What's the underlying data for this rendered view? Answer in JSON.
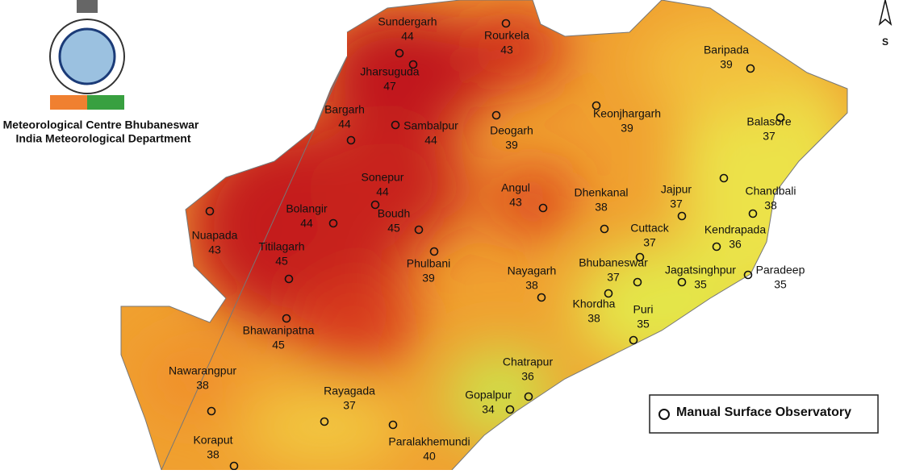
{
  "header": {
    "line1": "Meteorological Centre Bhubaneswar",
    "line2": "India Meteorological Department"
  },
  "compass": "S",
  "legend": "Manual Surface Observatory",
  "stations": [
    {
      "name": "Sundergarh",
      "temp": 44
    },
    {
      "name": "Rourkela",
      "temp": 43
    },
    {
      "name": "Jharsuguda",
      "temp": 47
    },
    {
      "name": "Bargarh",
      "temp": 44
    },
    {
      "name": "Sambalpur",
      "temp": 44
    },
    {
      "name": "Deogarh",
      "temp": 39
    },
    {
      "name": "Keonjhargarh",
      "temp": 39
    },
    {
      "name": "Baripada",
      "temp": 39
    },
    {
      "name": "Balasore",
      "temp": 37
    },
    {
      "name": "Sonepur",
      "temp": 44
    },
    {
      "name": "Angul",
      "temp": 43
    },
    {
      "name": "Dhenkanal",
      "temp": 38
    },
    {
      "name": "Jajpur",
      "temp": 37
    },
    {
      "name": "Chandbali",
      "temp": 38
    },
    {
      "name": "Bolangir",
      "temp": 44
    },
    {
      "name": "Boudh",
      "temp": 45
    },
    {
      "name": "Nuapada",
      "temp": 43
    },
    {
      "name": "Cuttack",
      "temp": 37
    },
    {
      "name": "Kendrapada",
      "temp": 36
    },
    {
      "name": "Titilagarh",
      "temp": 45
    },
    {
      "name": "Phulbani",
      "temp": 39
    },
    {
      "name": "Nayagarh",
      "temp": 38
    },
    {
      "name": "Bhubaneswar",
      "temp": 37
    },
    {
      "name": "Jagatsinghpur",
      "temp": 35
    },
    {
      "name": "Paradeep",
      "temp": 35
    },
    {
      "name": "Khordha",
      "temp": 38
    },
    {
      "name": "Puri",
      "temp": 35
    },
    {
      "name": "Bhawanipatna",
      "temp": 45
    },
    {
      "name": "Chatrapur",
      "temp": 36
    },
    {
      "name": "Nawarangpur",
      "temp": 38
    },
    {
      "name": "Rayagada",
      "temp": 37
    },
    {
      "name": "Gopalpur",
      "temp": 34
    },
    {
      "name": "Koraput",
      "temp": 38
    },
    {
      "name": "Paralakhemundi",
      "temp": 40
    }
  ]
}
